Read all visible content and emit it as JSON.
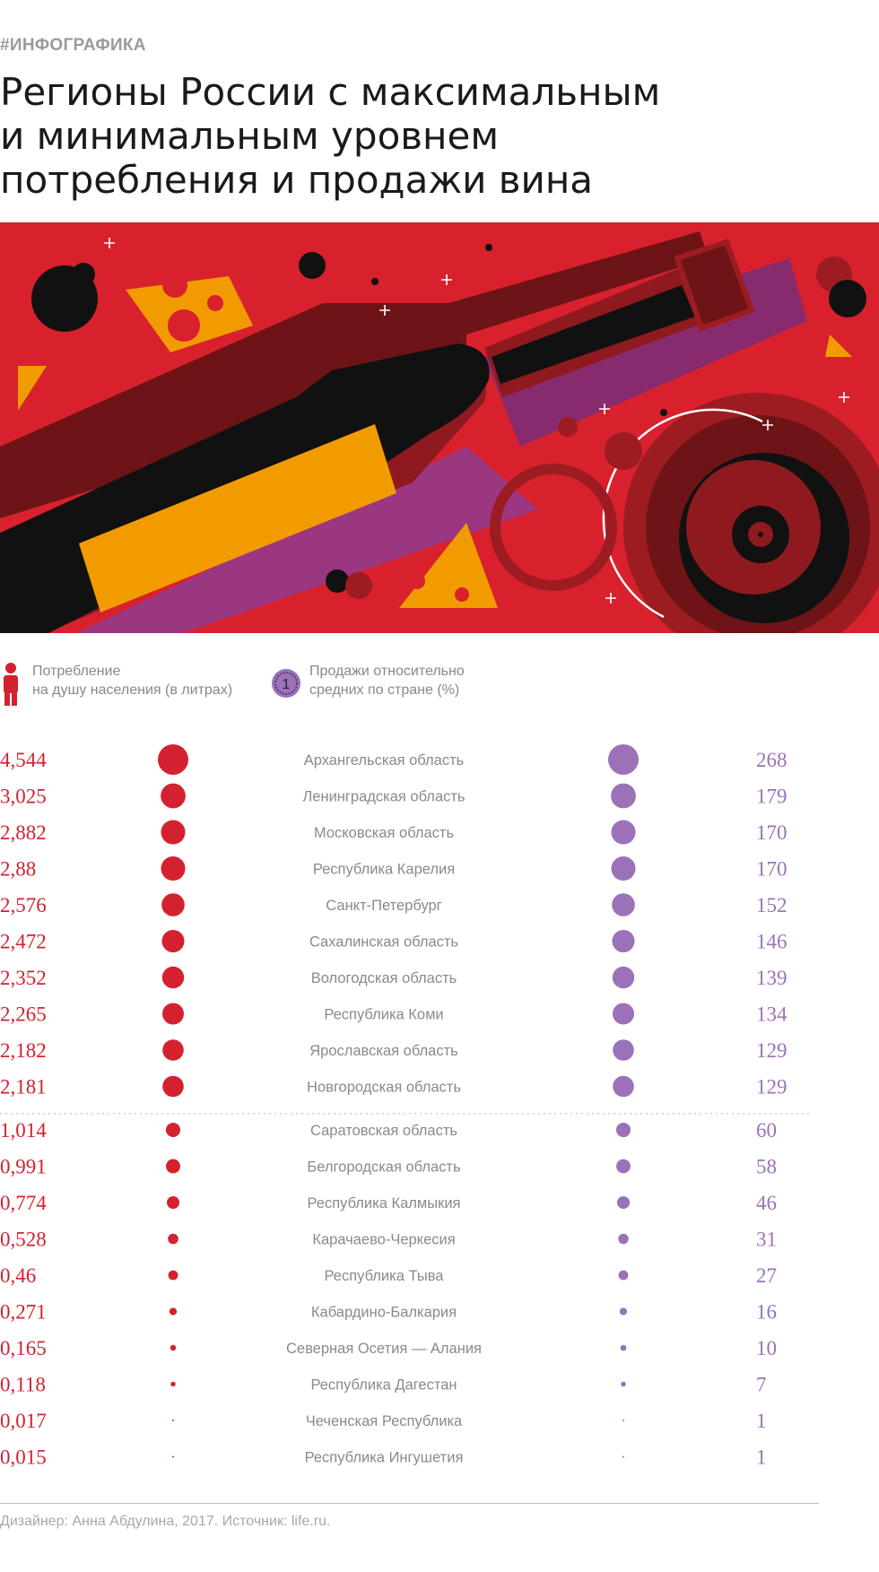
{
  "tag": "#ИНФОГРАФИКА",
  "title_lines": [
    "Регионы России с максимальным",
    "и минимальным уровнем",
    "потребления и продажи вина"
  ],
  "legend": {
    "consumption_line1": "Потребление",
    "consumption_line2": "на душу населения (в литрах)",
    "sales_line1": "Продажи относительно",
    "sales_line2": "средних по стране (%)",
    "sales_badge": "1"
  },
  "colors": {
    "consumption": "#d42130",
    "sales": "#9b72b8",
    "background_art": "#d8212d",
    "region_label": "#8a8a8a"
  },
  "chart_data": {
    "type": "table",
    "columns": [
      "consumption",
      "region",
      "sales"
    ],
    "groups": [
      "top",
      "bottom"
    ],
    "rows": [
      {
        "region": "Архангельская область",
        "consumption": 4.544,
        "consumption_label": "4,544",
        "sales": 268,
        "sales_label": "268",
        "group": "top"
      },
      {
        "region": "Ленинградская область",
        "consumption": 3.025,
        "consumption_label": "3,025",
        "sales": 179,
        "sales_label": "179",
        "group": "top"
      },
      {
        "region": "Московская область",
        "consumption": 2.882,
        "consumption_label": "2,882",
        "sales": 170,
        "sales_label": "170",
        "group": "top"
      },
      {
        "region": "Республика Карелия",
        "consumption": 2.88,
        "consumption_label": "2,88",
        "sales": 170,
        "sales_label": "170",
        "group": "top"
      },
      {
        "region": "Санкт-Петербург",
        "consumption": 2.576,
        "consumption_label": "2,576",
        "sales": 152,
        "sales_label": "152",
        "group": "top"
      },
      {
        "region": "Сахалинская область",
        "consumption": 2.472,
        "consumption_label": "2,472",
        "sales": 146,
        "sales_label": "146",
        "group": "top"
      },
      {
        "region": "Вологодская область",
        "consumption": 2.352,
        "consumption_label": "2,352",
        "sales": 139,
        "sales_label": "139",
        "group": "top"
      },
      {
        "region": "Республика Коми",
        "consumption": 2.265,
        "consumption_label": "2,265",
        "sales": 134,
        "sales_label": "134",
        "group": "top"
      },
      {
        "region": "Ярославская область",
        "consumption": 2.182,
        "consumption_label": "2,182",
        "sales": 129,
        "sales_label": "129",
        "group": "top"
      },
      {
        "region": "Новгородская область",
        "consumption": 2.181,
        "consumption_label": "2,181",
        "sales": 129,
        "sales_label": "129",
        "group": "top"
      },
      {
        "region": "Саратовская область",
        "consumption": 1.014,
        "consumption_label": "1,014",
        "sales": 60,
        "sales_label": "60",
        "group": "bottom"
      },
      {
        "region": "Белгородская область",
        "consumption": 0.991,
        "consumption_label": "0,991",
        "sales": 58,
        "sales_label": "58",
        "group": "bottom"
      },
      {
        "region": "Республика Калмыкия",
        "consumption": 0.774,
        "consumption_label": "0,774",
        "sales": 46,
        "sales_label": "46",
        "group": "bottom"
      },
      {
        "region": "Карачаево-Черкесия",
        "consumption": 0.528,
        "consumption_label": "0,528",
        "sales": 31,
        "sales_label": "31",
        "group": "bottom"
      },
      {
        "region": "Республика Тыва",
        "consumption": 0.46,
        "consumption_label": "0,46",
        "sales": 27,
        "sales_label": "27",
        "group": "bottom"
      },
      {
        "region": "Кабардино-Балкария",
        "consumption": 0.271,
        "consumption_label": "0,271",
        "sales": 16,
        "sales_label": "16",
        "group": "bottom"
      },
      {
        "region": "Северная Осетия — Алания",
        "consumption": 0.165,
        "consumption_label": "0,165",
        "sales": 10,
        "sales_label": "10",
        "group": "bottom"
      },
      {
        "region": "Республика Дагестан",
        "consumption": 0.118,
        "consumption_label": "0,118",
        "sales": 7,
        "sales_label": "7",
        "group": "bottom"
      },
      {
        "region": "Чеченская Республика",
        "consumption": 0.017,
        "consumption_label": "0,017",
        "sales": 1,
        "sales_label": "1",
        "group": "bottom"
      },
      {
        "region": "Республика Ингушетия",
        "consumption": 0.015,
        "consumption_label": "0,015",
        "sales": 1,
        "sales_label": "1",
        "group": "bottom"
      }
    ]
  },
  "footer": "Дизайнер: Анна Абдулина, 2017. Источник: life.ru."
}
